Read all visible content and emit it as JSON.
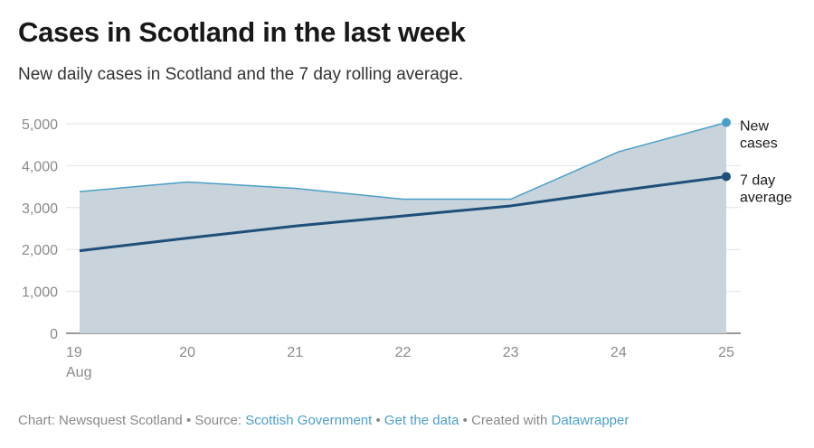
{
  "header": {
    "title": "Cases in Scotland in the last week",
    "subtitle": "New daily cases in Scotland and the 7 day rolling average."
  },
  "chart_data": {
    "type": "area",
    "categories": [
      "19",
      "20",
      "21",
      "22",
      "23",
      "24",
      "25"
    ],
    "first_category_sublabel": "Aug",
    "ylim": [
      0,
      5000
    ],
    "yticks": [
      0,
      1000,
      2000,
      3000,
      4000,
      5000
    ],
    "ytick_labels": [
      "0",
      "1,000",
      "2,000",
      "3,000",
      "4,000",
      "5,000"
    ],
    "series": [
      {
        "name": "New cases",
        "label_lines": [
          "New",
          "cases"
        ],
        "values": [
          3380,
          3610,
          3460,
          3200,
          3200,
          4330,
          5030
        ],
        "color": "#4a9fc8",
        "fill": "#c8d3db"
      },
      {
        "name": "7 day average",
        "label_lines": [
          "7 day",
          "average"
        ],
        "values": [
          1970,
          2270,
          2560,
          2800,
          3040,
          3400,
          3740
        ],
        "color": "#1e4e79"
      }
    ]
  },
  "footer": {
    "chart_credit": "Chart: Newsquest Scotland",
    "source_prefix": "Source:",
    "source": "Scottish Government",
    "get_data": "Get the data",
    "created_with_prefix": "Created with",
    "created_with": "Datawrapper",
    "separator": "•"
  }
}
